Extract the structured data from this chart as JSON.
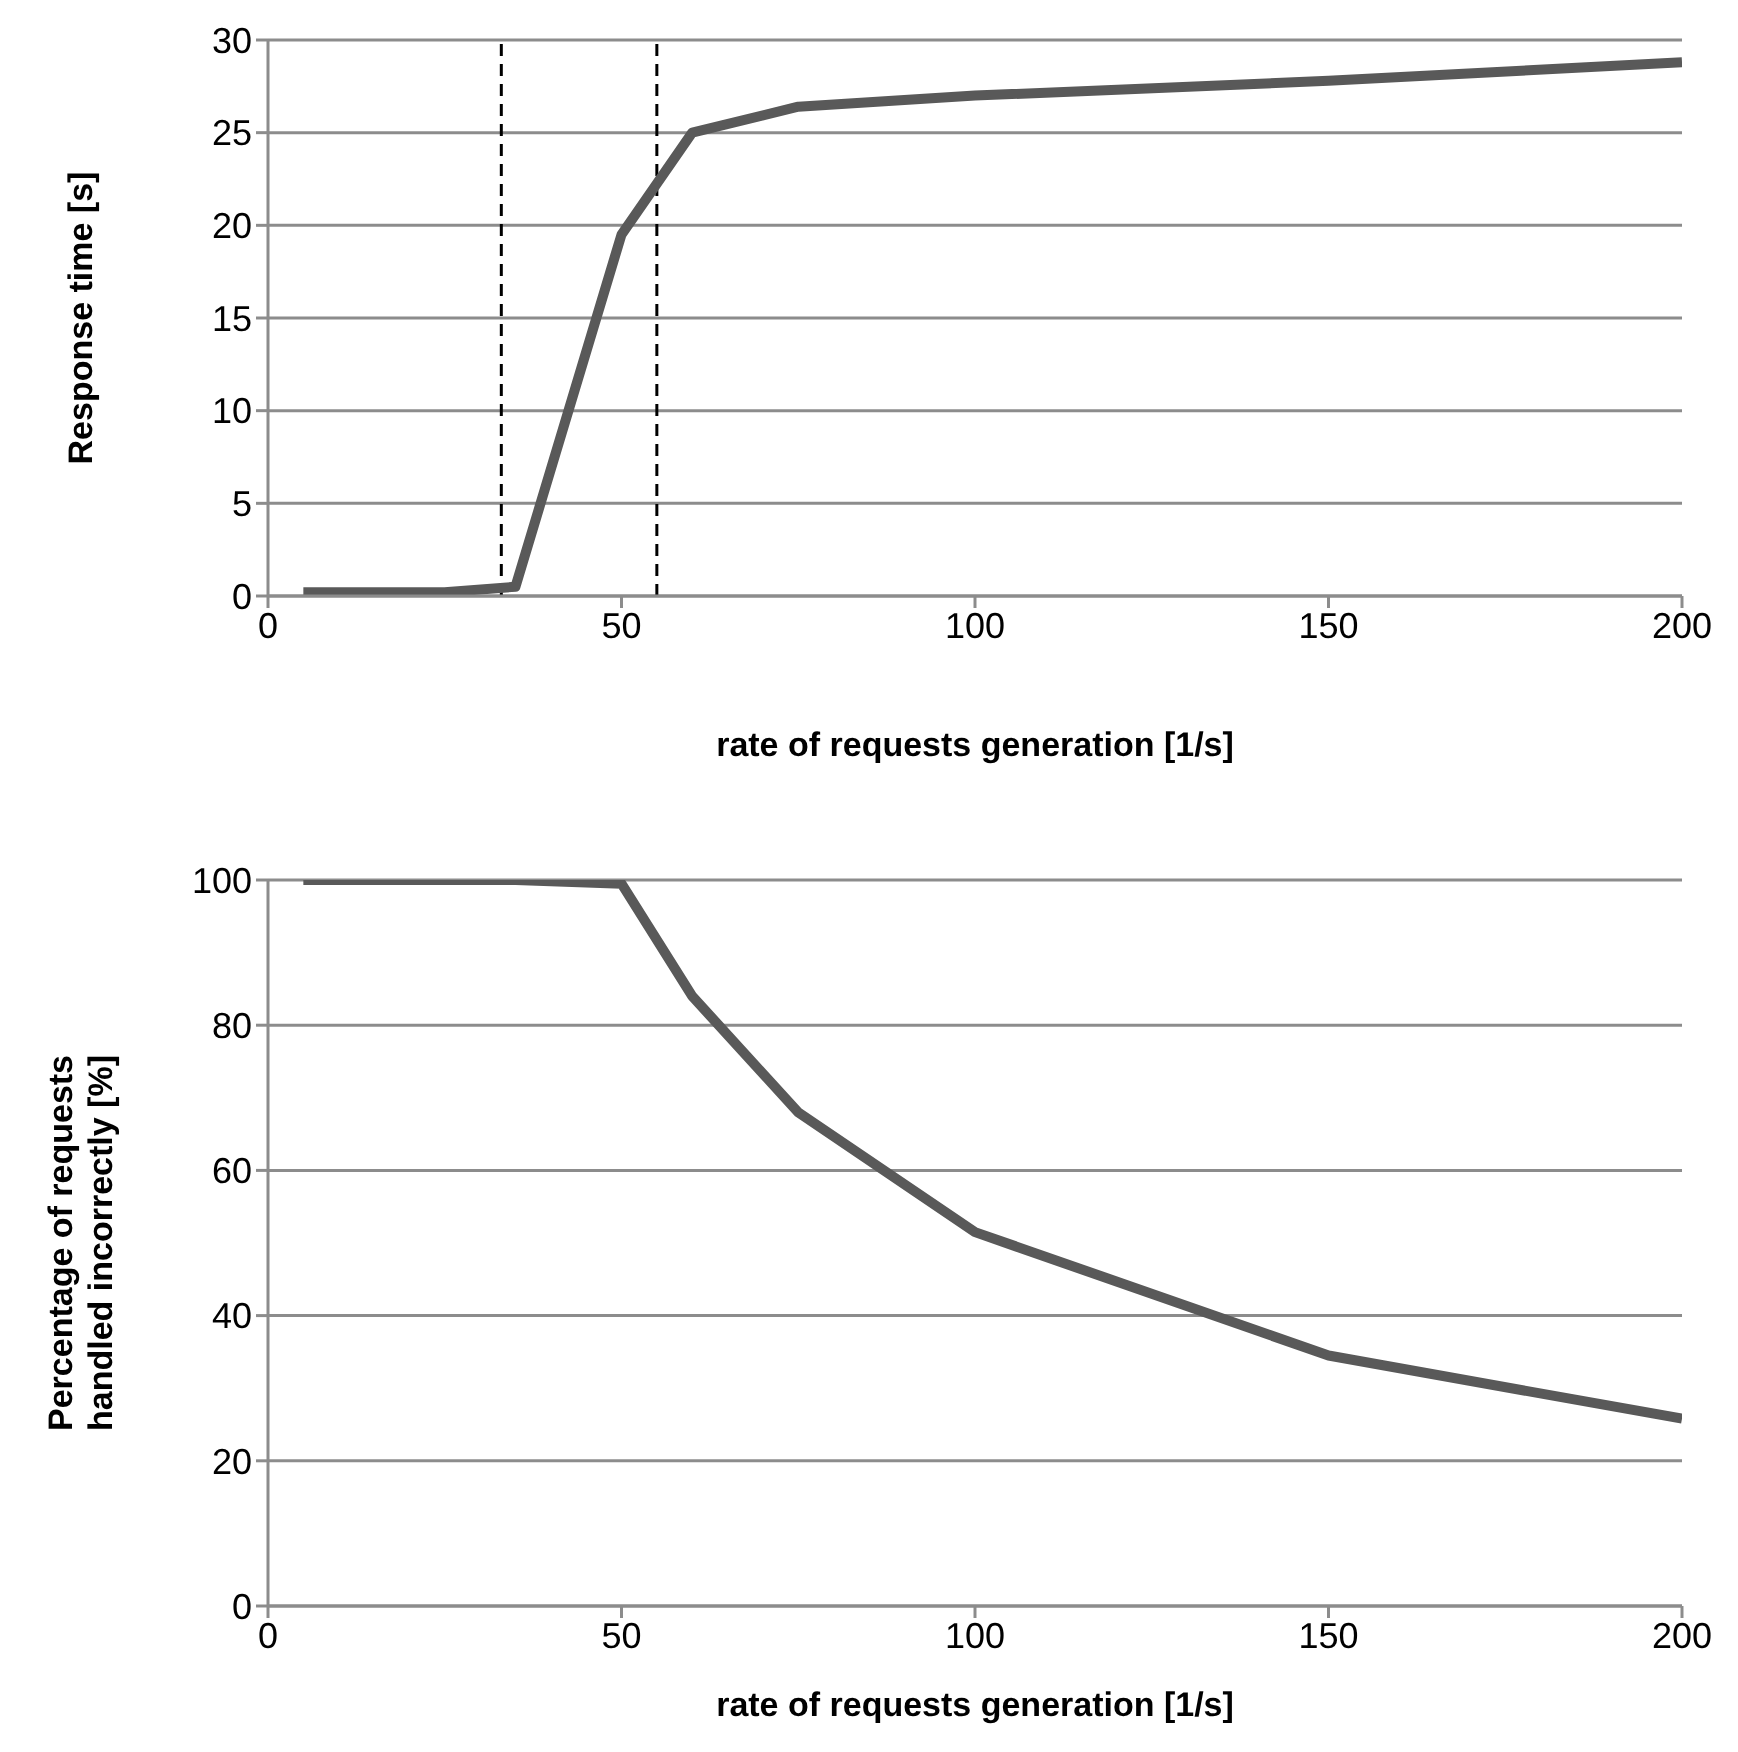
{
  "chart_data": [
    {
      "type": "line",
      "xlabel": "rate of requests generation [1/s]",
      "ylabel": "Response time [s]",
      "x": [
        5,
        25,
        35,
        50,
        60,
        75,
        100,
        150,
        200
      ],
      "series": [
        {
          "color": "#595959",
          "values": [
            0.2,
            0.2,
            0.5,
            19.5,
            25,
            26.4,
            27,
            27.8,
            28.8
          ]
        }
      ],
      "xlim": [
        0,
        200
      ],
      "xticks": [
        0,
        50,
        100,
        150,
        200
      ],
      "ylim": [
        0,
        30
      ],
      "yticks": [
        0,
        5,
        10,
        15,
        20,
        25,
        30
      ],
      "grid": "y",
      "marker": "none",
      "line_style": "solid",
      "ref_lines": [
        {
          "axis": "x",
          "value": 33,
          "color": "#000000",
          "line_style": "dashed"
        },
        {
          "axis": "x",
          "value": 55,
          "color": "#000000",
          "line_style": "dashed"
        }
      ]
    },
    {
      "type": "line",
      "xlabel": "rate of requests generation [1/s]",
      "ylabel": "Percentage of requests handled incorrectly  [%]",
      "x": [
        5,
        35,
        50,
        60,
        75,
        100,
        150,
        200
      ],
      "series": [
        {
          "color": "#595959",
          "values": [
            100,
            100,
            99.5,
            84,
            68,
            51.5,
            34.5,
            25.8
          ]
        }
      ],
      "xlim": [
        0,
        200
      ],
      "xticks": [
        0,
        50,
        100,
        150,
        200
      ],
      "ylim": [
        0,
        100
      ],
      "yticks": [
        0,
        20,
        40,
        60,
        80,
        100
      ],
      "grid": "y",
      "marker": "none",
      "line_style": "solid"
    }
  ]
}
